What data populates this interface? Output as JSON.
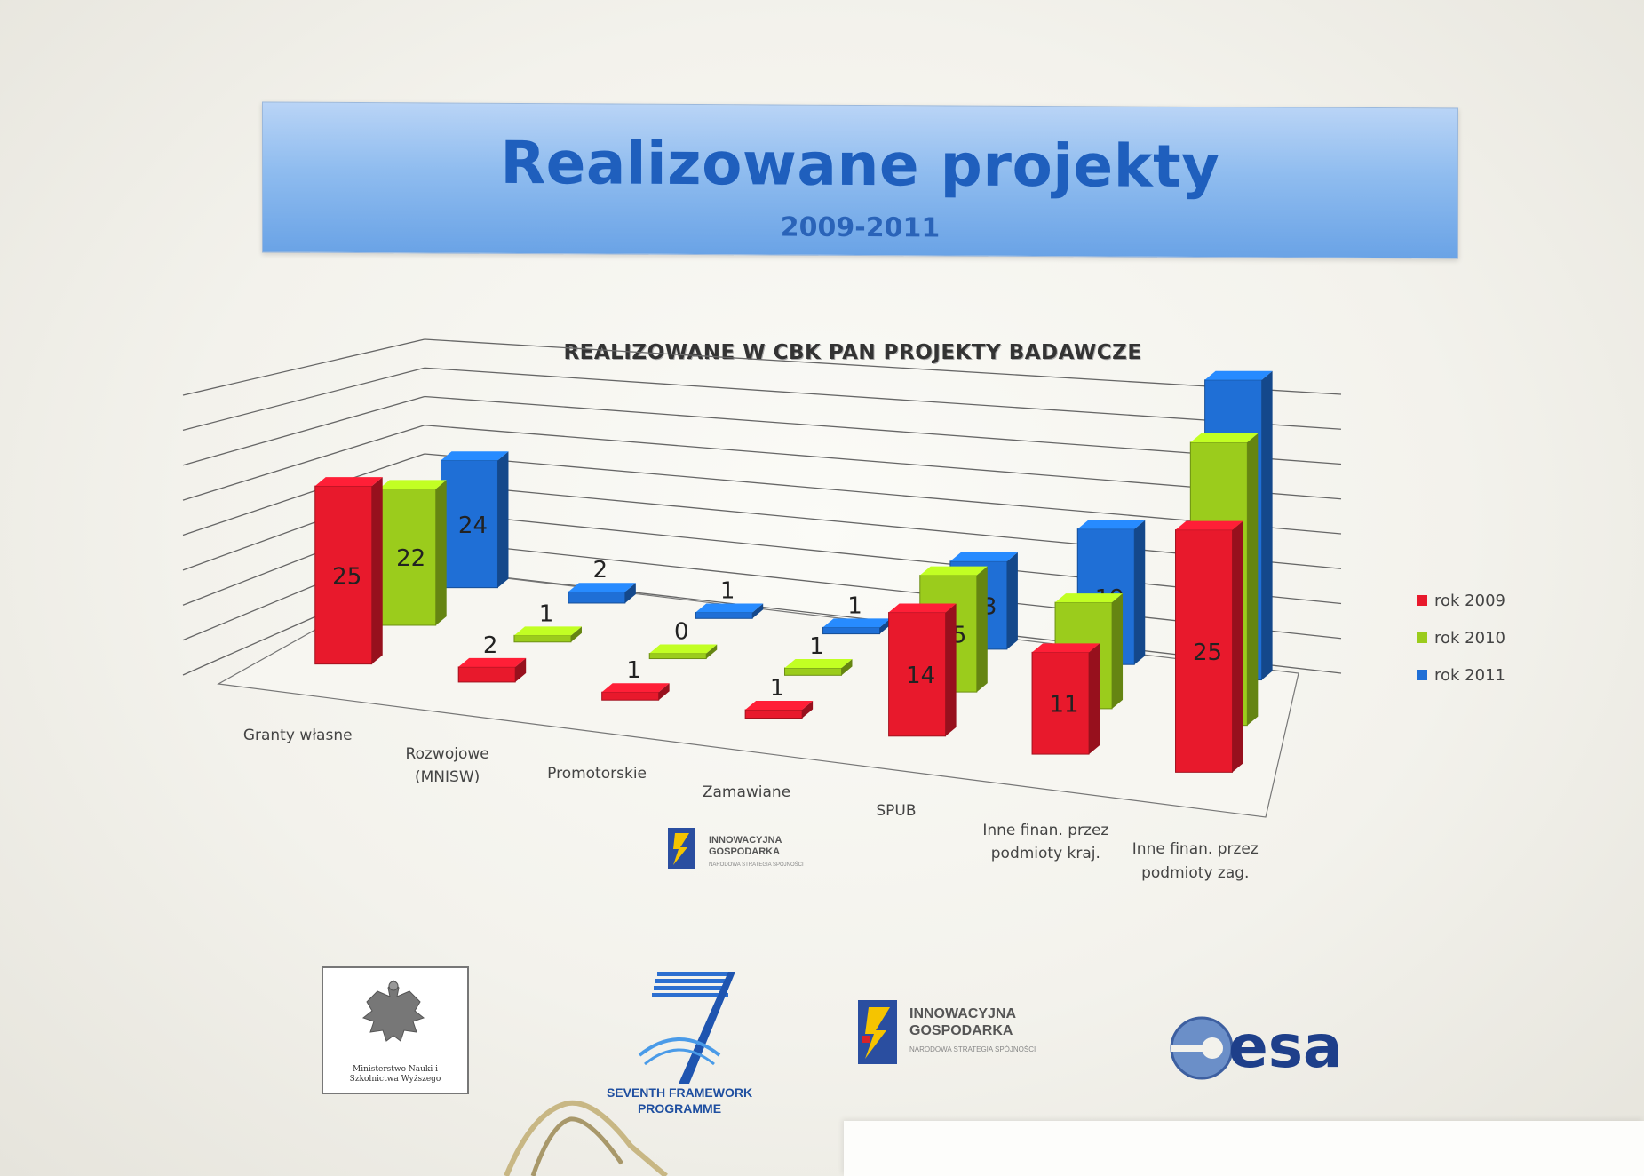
{
  "slide": {
    "title": "Realizowane projekty",
    "subtitle": "2009-2011"
  },
  "chart_data": {
    "type": "bar",
    "title": "REALIZOWANE W CBK PAN PROJEKTY BADAWCZE",
    "categories": [
      "Granty własne",
      "Rozwojowe (MNISW)",
      "Promotorskie",
      "Zamawiane",
      "SPUB",
      "Inne finan. przez podmioty kraj.",
      "Inne finan. przez podmioty zag."
    ],
    "series": [
      {
        "name": "rok 2009",
        "color": "#e8192c",
        "values": [
          25,
          2,
          1,
          1,
          14,
          11,
          25
        ]
      },
      {
        "name": "rok 2010",
        "color": "#9bcc1c",
        "values": [
          22,
          1,
          0,
          1,
          15,
          13,
          33
        ]
      },
      {
        "name": "rok 2011",
        "color": "#1f6fd6",
        "values": [
          24,
          2,
          1,
          1,
          13,
          19,
          40
        ]
      }
    ],
    "ylim": [
      0,
      40
    ],
    "grid": true,
    "legend_position": "right",
    "style": "3d-clustered-columns"
  },
  "logos": {
    "ministry": {
      "caption": "Ministerstwo Nauki i Szkolnictwa Wyższego"
    },
    "fp7": {
      "caption_line1": "SEVENTH FRAMEWORK",
      "caption_line2": "PROGRAMME",
      "mark": "7"
    },
    "innowacyjna": {
      "line1": "INNOWACYJNA",
      "line2": "GOSPODARKA",
      "line3": "NARODOWA STRATEGIA SPÓJNOŚCI"
    },
    "esa": {
      "text": "esa"
    }
  }
}
